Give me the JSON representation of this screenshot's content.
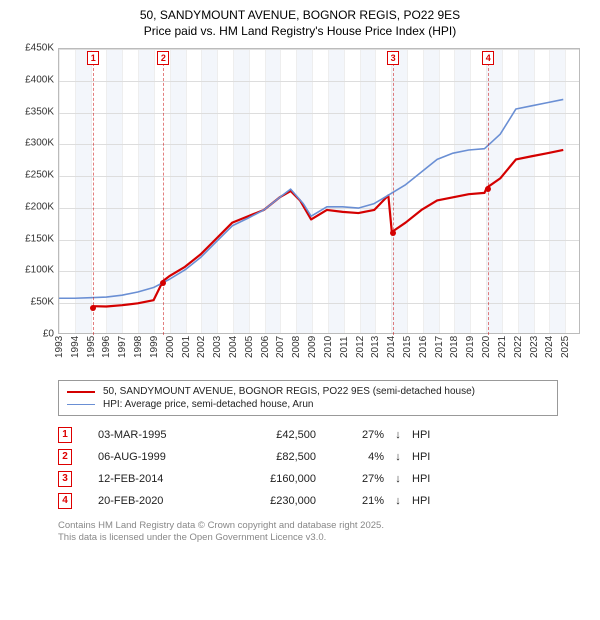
{
  "title": "50, SANDYMOUNT AVENUE, BOGNOR REGIS, PO22 9ES",
  "subtitle": "Price paid vs. HM Land Registry's House Price Index (HPI)",
  "chart": {
    "type": "line",
    "background_color": "#ffffff",
    "band_color": "#f3f6fb",
    "grid_color": "#dddddd",
    "border_color": "#bbbbbb",
    "xlim": [
      1993,
      2026
    ],
    "ylim": [
      0,
      450000
    ],
    "ytick_step": 50000,
    "yticks": [
      "£0",
      "£50K",
      "£100K",
      "£150K",
      "£200K",
      "£250K",
      "£300K",
      "£350K",
      "£400K",
      "£450K"
    ],
    "xticks": [
      1993,
      1994,
      1995,
      1996,
      1997,
      1998,
      1999,
      2000,
      2001,
      2002,
      2003,
      2004,
      2005,
      2006,
      2007,
      2008,
      2009,
      2010,
      2011,
      2012,
      2013,
      2014,
      2015,
      2016,
      2017,
      2018,
      2019,
      2020,
      2021,
      2022,
      2023,
      2024,
      2025
    ],
    "tick_fontsize": 10,
    "series": [
      {
        "name": "price_paid",
        "color": "#d40000",
        "width": 2.2,
        "points": [
          [
            1995.17,
            42500
          ],
          [
            1996.0,
            42000
          ],
          [
            1997.0,
            44000
          ],
          [
            1998.0,
            47000
          ],
          [
            1999.0,
            52000
          ],
          [
            1999.6,
            82500
          ],
          [
            2000.0,
            90000
          ],
          [
            2001.0,
            105000
          ],
          [
            2002.0,
            125000
          ],
          [
            2003.0,
            150000
          ],
          [
            2004.0,
            175000
          ],
          [
            2005.0,
            185000
          ],
          [
            2006.0,
            195000
          ],
          [
            2007.0,
            215000
          ],
          [
            2007.7,
            225000
          ],
          [
            2008.3,
            210000
          ],
          [
            2009.0,
            180000
          ],
          [
            2010.0,
            195000
          ],
          [
            2011.0,
            192000
          ],
          [
            2012.0,
            190000
          ],
          [
            2013.0,
            195000
          ],
          [
            2013.9,
            218000
          ],
          [
            2014.12,
            160000
          ],
          [
            2015.0,
            175000
          ],
          [
            2016.0,
            195000
          ],
          [
            2017.0,
            210000
          ],
          [
            2018.0,
            215000
          ],
          [
            2019.0,
            220000
          ],
          [
            2020.0,
            222000
          ],
          [
            2020.14,
            230000
          ],
          [
            2021.0,
            245000
          ],
          [
            2022.0,
            275000
          ],
          [
            2023.0,
            280000
          ],
          [
            2024.0,
            285000
          ],
          [
            2025.0,
            290000
          ]
        ]
      },
      {
        "name": "hpi",
        "color": "#6a8fd4",
        "width": 1.6,
        "points": [
          [
            1993.0,
            55000
          ],
          [
            1994.0,
            55000
          ],
          [
            1995.0,
            56000
          ],
          [
            1996.0,
            57000
          ],
          [
            1997.0,
            60000
          ],
          [
            1998.0,
            65000
          ],
          [
            1999.0,
            72000
          ],
          [
            2000.0,
            85000
          ],
          [
            2001.0,
            100000
          ],
          [
            2002.0,
            120000
          ],
          [
            2003.0,
            145000
          ],
          [
            2004.0,
            170000
          ],
          [
            2005.0,
            182000
          ],
          [
            2006.0,
            195000
          ],
          [
            2007.0,
            215000
          ],
          [
            2007.7,
            228000
          ],
          [
            2008.5,
            205000
          ],
          [
            2009.0,
            185000
          ],
          [
            2010.0,
            200000
          ],
          [
            2011.0,
            200000
          ],
          [
            2012.0,
            198000
          ],
          [
            2013.0,
            205000
          ],
          [
            2014.0,
            220000
          ],
          [
            2015.0,
            235000
          ],
          [
            2016.0,
            255000
          ],
          [
            2017.0,
            275000
          ],
          [
            2018.0,
            285000
          ],
          [
            2019.0,
            290000
          ],
          [
            2020.0,
            292000
          ],
          [
            2021.0,
            315000
          ],
          [
            2022.0,
            355000
          ],
          [
            2023.0,
            360000
          ],
          [
            2024.0,
            365000
          ],
          [
            2025.0,
            370000
          ]
        ]
      }
    ],
    "sale_markers": [
      {
        "n": "1",
        "year": 1995.17,
        "price": 42500
      },
      {
        "n": "2",
        "year": 1999.6,
        "price": 82500
      },
      {
        "n": "3",
        "year": 2014.12,
        "price": 160000
      },
      {
        "n": "4",
        "year": 2020.14,
        "price": 230000
      }
    ]
  },
  "legend": {
    "series1": {
      "label": "50, SANDYMOUNT AVENUE, BOGNOR REGIS, PO22 9ES (semi-detached house)",
      "color": "#d40000",
      "width": 2.2
    },
    "series2": {
      "label": "HPI: Average price, semi-detached house, Arun",
      "color": "#6a8fd4",
      "width": 1.6
    }
  },
  "sales_table": {
    "diff_label": "HPI",
    "rows": [
      {
        "n": "1",
        "date": "03-MAR-1995",
        "price": "£42,500",
        "diff": "27%",
        "arrow": "↓"
      },
      {
        "n": "2",
        "date": "06-AUG-1999",
        "price": "£82,500",
        "diff": "4%",
        "arrow": "↓"
      },
      {
        "n": "3",
        "date": "12-FEB-2014",
        "price": "£160,000",
        "diff": "27%",
        "arrow": "↓"
      },
      {
        "n": "4",
        "date": "20-FEB-2020",
        "price": "£230,000",
        "diff": "21%",
        "arrow": "↓"
      }
    ]
  },
  "fineprint": {
    "line1": "Contains HM Land Registry data © Crown copyright and database right 2025.",
    "line2": "This data is licensed under the Open Government Licence v3.0."
  }
}
